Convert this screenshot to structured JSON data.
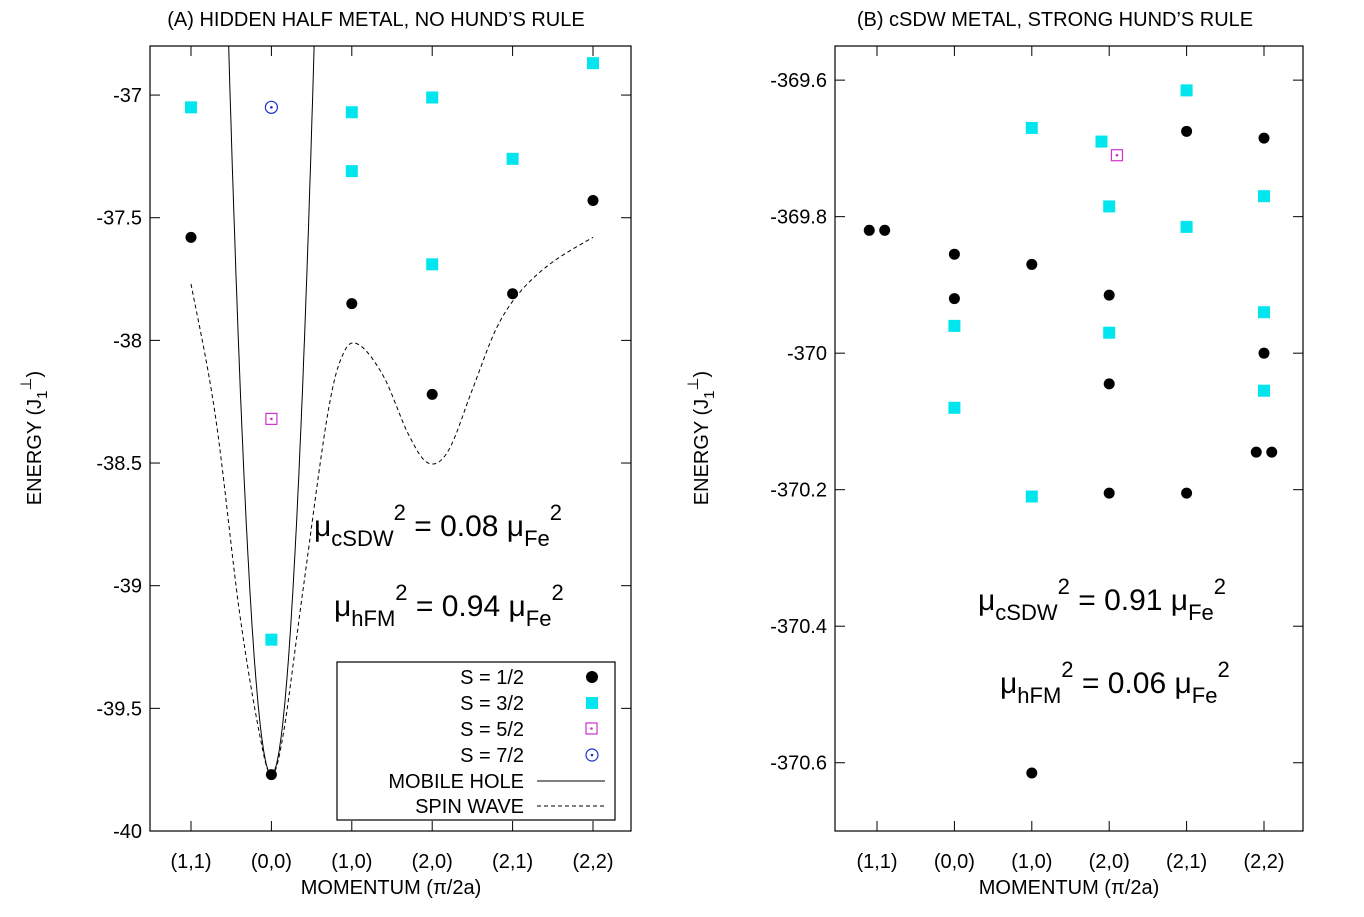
{
  "chart_data": [
    {
      "type": "scatter",
      "title": "(A) HIDDEN HALF METAL, NO HUND’S RULE",
      "xlabel": "MOMENTUM (π/2a)",
      "ylabel_main": "ENERGY (J",
      "ylabel_sub": "1",
      "ylabel_sup": "⊥",
      "ylabel_close": ")",
      "categories": [
        "(1,1)",
        "(0,0)",
        "(1,0)",
        "(2,0)",
        "(2,1)",
        "(2,2)"
      ],
      "ylim": [
        -40,
        -36.8
      ],
      "yticks": [
        -37,
        -37.5,
        -38,
        -38.5,
        -39,
        -39.5,
        -40
      ],
      "ytick_labels": [
        "-37",
        "-37.5",
        "-38",
        "-38.5",
        "-39",
        "-39.5",
        "-40"
      ],
      "series": [
        {
          "name": "S = 1/2",
          "marker": "circle-filled",
          "color": "#000000",
          "points": [
            [
              0,
              -37.58
            ],
            [
              1,
              -39.77
            ],
            [
              2,
              -37.85
            ],
            [
              3,
              -38.22
            ],
            [
              4,
              -37.81
            ],
            [
              5,
              -37.43
            ]
          ]
        },
        {
          "name": "S = 3/2",
          "marker": "square-filled",
          "color": "#00e5ee",
          "points": [
            [
              0,
              -37.05
            ],
            [
              1,
              -39.22
            ],
            [
              2,
              -37.07
            ],
            [
              2,
              -37.31
            ],
            [
              3,
              -37.01
            ],
            [
              3,
              -37.69
            ],
            [
              4,
              -37.26
            ],
            [
              5,
              -36.87
            ]
          ]
        },
        {
          "name": "S = 5/2",
          "marker": "square-dot",
          "color": "#cc33cc",
          "points": [
            [
              1,
              -38.32
            ]
          ]
        },
        {
          "name": "S = 7/2",
          "marker": "circle-dot",
          "color": "#1a2ecc",
          "points": [
            [
              1,
              -37.05
            ]
          ]
        },
        {
          "name": "MOBILE HOLE",
          "marker": "line-solid",
          "color": "#000000",
          "points": []
        },
        {
          "name": "SPIN WAVE",
          "marker": "line-dashed",
          "color": "#000000",
          "points": [
            [
              0,
              -37.77
            ],
            [
              0.3,
              -38.3
            ],
            [
              0.6,
              -39.1
            ],
            [
              0.85,
              -39.6
            ],
            [
              1,
              -39.77
            ],
            [
              1.15,
              -39.6
            ],
            [
              1.4,
              -39.0
            ],
            [
              1.7,
              -38.3
            ],
            [
              1.9,
              -38.05
            ],
            [
              2.1,
              -38.02
            ],
            [
              2.4,
              -38.15
            ],
            [
              2.7,
              -38.38
            ],
            [
              2.95,
              -38.5
            ],
            [
              3.2,
              -38.45
            ],
            [
              3.5,
              -38.2
            ],
            [
              3.8,
              -37.95
            ],
            [
              4.1,
              -37.8
            ],
            [
              4.5,
              -37.68
            ],
            [
              5,
              -37.58
            ]
          ]
        }
      ],
      "annotations": [
        {
          "base": "μ",
          "sub": "cSDW",
          "sup": "2",
          "mid": " = 0.08 μ",
          "sub2": "Fe",
          "sup2": "2"
        },
        {
          "base": "μ",
          "sub": "hFM",
          "sup": "2",
          "mid": " = 0.94 μ",
          "sub2": "Fe",
          "sup2": "2"
        }
      ],
      "legend_position": "bottom-right",
      "grid": false
    },
    {
      "type": "scatter",
      "title": "(B) cSDW METAL, STRONG HUND’S RULE",
      "xlabel": "MOMENTUM (π/2a)",
      "ylabel_main": "ENERGY (J",
      "ylabel_sub": "1",
      "ylabel_sup": "⊥",
      "ylabel_close": ")",
      "categories": [
        "(1,1)",
        "(0,0)",
        "(1,0)",
        "(2,0)",
        "(2,1)",
        "(2,2)"
      ],
      "ylim": [
        -370.7,
        -369.55
      ],
      "yticks": [
        -369.6,
        -369.8,
        -370,
        -370.2,
        -370.4,
        -370.6
      ],
      "ytick_labels": [
        "-369.6",
        "-369.8",
        "-370",
        "-370.2",
        "-370.4",
        "-370.6"
      ],
      "series": [
        {
          "name": "S = 1/2",
          "marker": "circle-filled",
          "color": "#000000",
          "points": [
            [
              -0.1,
              -369.82
            ],
            [
              0.1,
              -369.82
            ],
            [
              1,
              -369.855
            ],
            [
              1,
              -369.92
            ],
            [
              2,
              -369.87
            ],
            [
              2,
              -370.615
            ],
            [
              3,
              -369.915
            ],
            [
              3,
              -370.045
            ],
            [
              3,
              -370.205
            ],
            [
              4,
              -369.675
            ],
            [
              4,
              -370.205
            ],
            [
              5,
              -369.685
            ],
            [
              5,
              -370.0
            ],
            [
              4.9,
              -370.145
            ],
            [
              5.1,
              -370.145
            ]
          ]
        },
        {
          "name": "S = 3/2",
          "marker": "square-filled",
          "color": "#00e5ee",
          "points": [
            [
              1,
              -369.96
            ],
            [
              1,
              -370.08
            ],
            [
              2,
              -369.67
            ],
            [
              2,
              -370.21
            ],
            [
              2.9,
              -369.69
            ],
            [
              3,
              -369.785
            ],
            [
              3,
              -369.97
            ],
            [
              4,
              -369.615
            ],
            [
              4,
              -369.815
            ],
            [
              5,
              -369.77
            ],
            [
              5,
              -369.94
            ],
            [
              5,
              -370.055
            ]
          ]
        },
        {
          "name": "S = 5/2",
          "marker": "square-dot",
          "color": "#cc33cc",
          "points": [
            [
              3.1,
              -369.71
            ]
          ]
        }
      ],
      "annotations": [
        {
          "base": "μ",
          "sub": "cSDW",
          "sup": "2",
          "mid": " = 0.91 μ",
          "sub2": "Fe",
          "sup2": "2"
        },
        {
          "base": "μ",
          "sub": "hFM",
          "sup": "2",
          "mid": " = 0.06 μ",
          "sub2": "Fe",
          "sup2": "2"
        }
      ],
      "grid": false
    }
  ]
}
